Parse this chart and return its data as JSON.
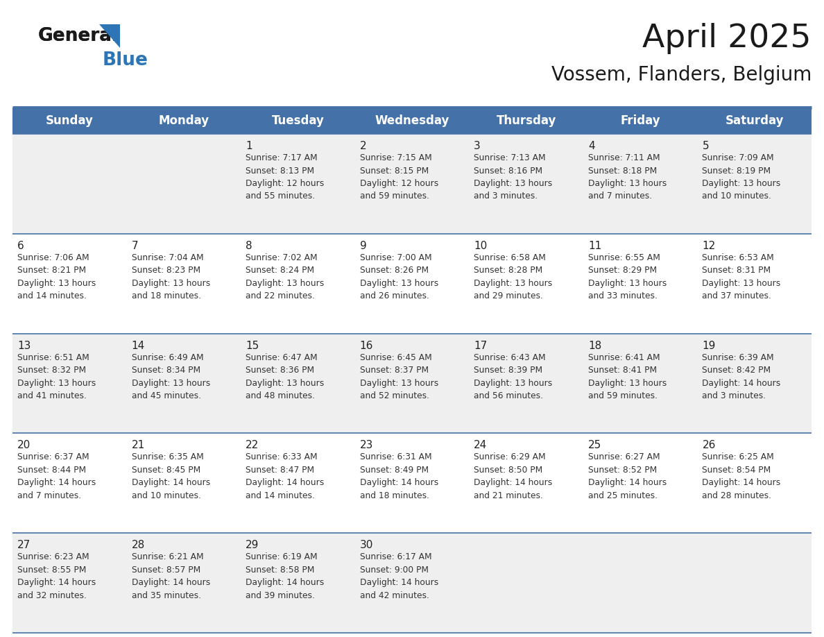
{
  "title": "April 2025",
  "subtitle": "Vossem, Flanders, Belgium",
  "days_of_week": [
    "Sunday",
    "Monday",
    "Tuesday",
    "Wednesday",
    "Thursday",
    "Friday",
    "Saturday"
  ],
  "header_bg": "#4472A8",
  "header_text": "#FFFFFF",
  "row_bg_even": "#EFEFEF",
  "row_bg_odd": "#FFFFFF",
  "cell_text_color": "#333333",
  "day_num_color": "#222222",
  "border_color": "#4472A8",
  "logo_general_color": "#1a1a1a",
  "logo_blue_color": "#2E75B6",
  "logo_triangle_color": "#2E75B6",
  "calendar": [
    [
      {
        "day": null,
        "info": null
      },
      {
        "day": null,
        "info": null
      },
      {
        "day": 1,
        "info": "Sunrise: 7:17 AM\nSunset: 8:13 PM\nDaylight: 12 hours\nand 55 minutes."
      },
      {
        "day": 2,
        "info": "Sunrise: 7:15 AM\nSunset: 8:15 PM\nDaylight: 12 hours\nand 59 minutes."
      },
      {
        "day": 3,
        "info": "Sunrise: 7:13 AM\nSunset: 8:16 PM\nDaylight: 13 hours\nand 3 minutes."
      },
      {
        "day": 4,
        "info": "Sunrise: 7:11 AM\nSunset: 8:18 PM\nDaylight: 13 hours\nand 7 minutes."
      },
      {
        "day": 5,
        "info": "Sunrise: 7:09 AM\nSunset: 8:19 PM\nDaylight: 13 hours\nand 10 minutes."
      }
    ],
    [
      {
        "day": 6,
        "info": "Sunrise: 7:06 AM\nSunset: 8:21 PM\nDaylight: 13 hours\nand 14 minutes."
      },
      {
        "day": 7,
        "info": "Sunrise: 7:04 AM\nSunset: 8:23 PM\nDaylight: 13 hours\nand 18 minutes."
      },
      {
        "day": 8,
        "info": "Sunrise: 7:02 AM\nSunset: 8:24 PM\nDaylight: 13 hours\nand 22 minutes."
      },
      {
        "day": 9,
        "info": "Sunrise: 7:00 AM\nSunset: 8:26 PM\nDaylight: 13 hours\nand 26 minutes."
      },
      {
        "day": 10,
        "info": "Sunrise: 6:58 AM\nSunset: 8:28 PM\nDaylight: 13 hours\nand 29 minutes."
      },
      {
        "day": 11,
        "info": "Sunrise: 6:55 AM\nSunset: 8:29 PM\nDaylight: 13 hours\nand 33 minutes."
      },
      {
        "day": 12,
        "info": "Sunrise: 6:53 AM\nSunset: 8:31 PM\nDaylight: 13 hours\nand 37 minutes."
      }
    ],
    [
      {
        "day": 13,
        "info": "Sunrise: 6:51 AM\nSunset: 8:32 PM\nDaylight: 13 hours\nand 41 minutes."
      },
      {
        "day": 14,
        "info": "Sunrise: 6:49 AM\nSunset: 8:34 PM\nDaylight: 13 hours\nand 45 minutes."
      },
      {
        "day": 15,
        "info": "Sunrise: 6:47 AM\nSunset: 8:36 PM\nDaylight: 13 hours\nand 48 minutes."
      },
      {
        "day": 16,
        "info": "Sunrise: 6:45 AM\nSunset: 8:37 PM\nDaylight: 13 hours\nand 52 minutes."
      },
      {
        "day": 17,
        "info": "Sunrise: 6:43 AM\nSunset: 8:39 PM\nDaylight: 13 hours\nand 56 minutes."
      },
      {
        "day": 18,
        "info": "Sunrise: 6:41 AM\nSunset: 8:41 PM\nDaylight: 13 hours\nand 59 minutes."
      },
      {
        "day": 19,
        "info": "Sunrise: 6:39 AM\nSunset: 8:42 PM\nDaylight: 14 hours\nand 3 minutes."
      }
    ],
    [
      {
        "day": 20,
        "info": "Sunrise: 6:37 AM\nSunset: 8:44 PM\nDaylight: 14 hours\nand 7 minutes."
      },
      {
        "day": 21,
        "info": "Sunrise: 6:35 AM\nSunset: 8:45 PM\nDaylight: 14 hours\nand 10 minutes."
      },
      {
        "day": 22,
        "info": "Sunrise: 6:33 AM\nSunset: 8:47 PM\nDaylight: 14 hours\nand 14 minutes."
      },
      {
        "day": 23,
        "info": "Sunrise: 6:31 AM\nSunset: 8:49 PM\nDaylight: 14 hours\nand 18 minutes."
      },
      {
        "day": 24,
        "info": "Sunrise: 6:29 AM\nSunset: 8:50 PM\nDaylight: 14 hours\nand 21 minutes."
      },
      {
        "day": 25,
        "info": "Sunrise: 6:27 AM\nSunset: 8:52 PM\nDaylight: 14 hours\nand 25 minutes."
      },
      {
        "day": 26,
        "info": "Sunrise: 6:25 AM\nSunset: 8:54 PM\nDaylight: 14 hours\nand 28 minutes."
      }
    ],
    [
      {
        "day": 27,
        "info": "Sunrise: 6:23 AM\nSunset: 8:55 PM\nDaylight: 14 hours\nand 32 minutes."
      },
      {
        "day": 28,
        "info": "Sunrise: 6:21 AM\nSunset: 8:57 PM\nDaylight: 14 hours\nand 35 minutes."
      },
      {
        "day": 29,
        "info": "Sunrise: 6:19 AM\nSunset: 8:58 PM\nDaylight: 14 hours\nand 39 minutes."
      },
      {
        "day": 30,
        "info": "Sunrise: 6:17 AM\nSunset: 9:00 PM\nDaylight: 14 hours\nand 42 minutes."
      },
      {
        "day": null,
        "info": null
      },
      {
        "day": null,
        "info": null
      },
      {
        "day": null,
        "info": null
      }
    ]
  ],
  "title_fontsize": 34,
  "subtitle_fontsize": 20,
  "header_fontsize": 12,
  "day_num_fontsize": 11,
  "info_fontsize": 8.8,
  "logo_fontsize": 19
}
